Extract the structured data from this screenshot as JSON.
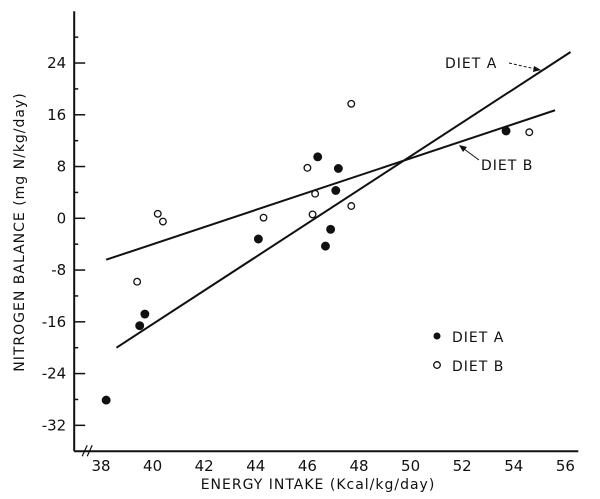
{
  "chart_data": {
    "type": "scatter",
    "title": "",
    "xlabel": "ENERGY INTAKE (Kcal/kg/day)",
    "ylabel": "NITROGEN BALANCE (mg N/kg/day)",
    "xlim": [
      37,
      56.5
    ],
    "ylim": [
      -36,
      32
    ],
    "x_ticks": [
      "38",
      "40",
      "42",
      "44",
      "46",
      "48",
      "50",
      "52",
      "54",
      "56"
    ],
    "y_ticks": [
      "24",
      "16",
      "8",
      "0",
      "-8",
      "-16",
      "-24",
      "-32"
    ],
    "grid": false,
    "legend_placement": "bottom-right",
    "axis_break": "x",
    "series": [
      {
        "name": "DIET A",
        "marker": "filled-circle",
        "points": [
          [
            38.2,
            -28.1
          ],
          [
            39.5,
            -16.6
          ],
          [
            39.7,
            -14.8
          ],
          [
            44.1,
            -3.2
          ],
          [
            46.4,
            9.5
          ],
          [
            47.2,
            7.7
          ],
          [
            47.1,
            4.3
          ],
          [
            46.9,
            -1.7
          ],
          [
            46.7,
            -4.3
          ],
          [
            53.7,
            13.5
          ]
        ],
        "fit_line": [
          [
            38.6,
            -20.0
          ],
          [
            56.2,
            25.7
          ]
        ],
        "line_label": "DIET A"
      },
      {
        "name": "DIET B",
        "marker": "open-circle",
        "points": [
          [
            39.4,
            -9.8
          ],
          [
            40.2,
            0.7
          ],
          [
            40.4,
            -0.5
          ],
          [
            44.3,
            0.1
          ],
          [
            46.0,
            7.8
          ],
          [
            46.3,
            3.8
          ],
          [
            46.2,
            0.6
          ],
          [
            47.7,
            17.7
          ],
          [
            47.7,
            1.9
          ],
          [
            54.6,
            13.3
          ]
        ],
        "fit_line": [
          [
            38.2,
            -6.4
          ],
          [
            55.6,
            16.7
          ]
        ],
        "line_label": "DIET B"
      }
    ]
  }
}
